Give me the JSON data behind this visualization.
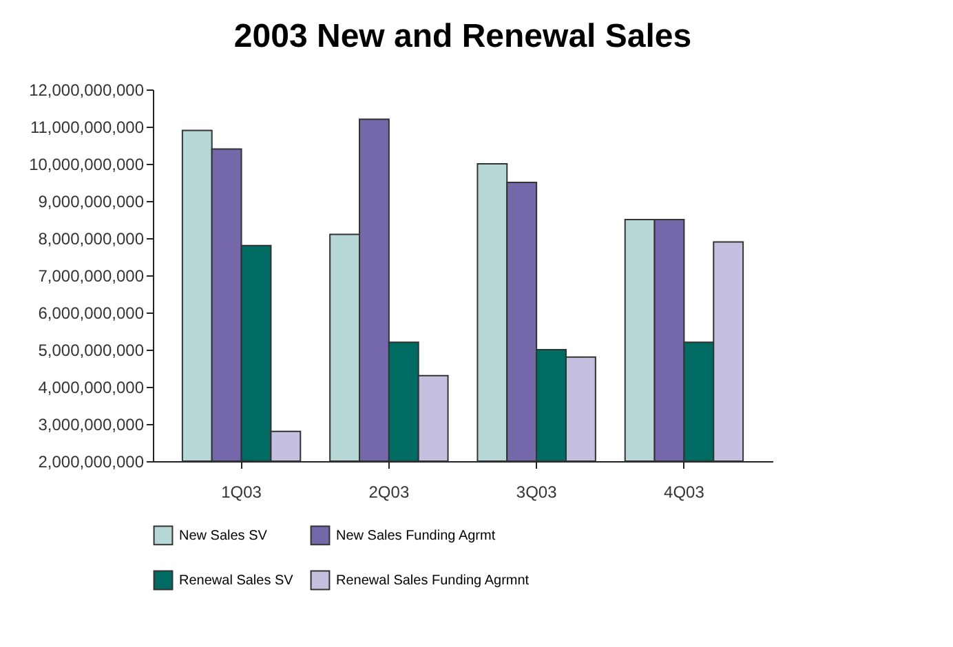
{
  "chart_data": {
    "type": "bar",
    "title": "2003 New and Renewal Sales",
    "categories": [
      "1Q03",
      "2Q03",
      "3Q03",
      "4Q03"
    ],
    "series": [
      {
        "name": "New Sales SV",
        "color": "#b7d7d7",
        "values": [
          10900000000,
          8100000000,
          10000000000,
          8500000000
        ]
      },
      {
        "name": "New Sales Funding Agrmt",
        "color": "#7467aa",
        "values": [
          10400000000,
          11200000000,
          9500000000,
          8500000000
        ]
      },
      {
        "name": "Renewal Sales SV",
        "color": "#006b63",
        "values": [
          7800000000,
          5200000000,
          5000000000,
          5200000000
        ]
      },
      {
        "name": "Renewal Sales Funding Agrmnt",
        "color": "#c5c0df",
        "values": [
          2800000000,
          4300000000,
          4800000000,
          7900000000
        ]
      }
    ],
    "ylim": [
      2000000000,
      12000000000
    ],
    "yticks": [
      {
        "value": 2000000000,
        "label": "2,000,000,000"
      },
      {
        "value": 3000000000,
        "label": "3,000,000,000"
      },
      {
        "value": 4000000000,
        "label": "4,000,000,000"
      },
      {
        "value": 5000000000,
        "label": "5,000,000,000"
      },
      {
        "value": 6000000000,
        "label": "6,000,000,000"
      },
      {
        "value": 7000000000,
        "label": "7,000,000,000"
      },
      {
        "value": 8000000000,
        "label": "8,000,000,000"
      },
      {
        "value": 9000000000,
        "label": "9,000,000,000"
      },
      {
        "value": 10000000000,
        "label": "10,000,000,000"
      },
      {
        "value": 11000000000,
        "label": "11,000,000,000"
      },
      {
        "value": 12000000000,
        "label": "12,000,000,000"
      }
    ],
    "grid": false,
    "legend": "bottom"
  }
}
